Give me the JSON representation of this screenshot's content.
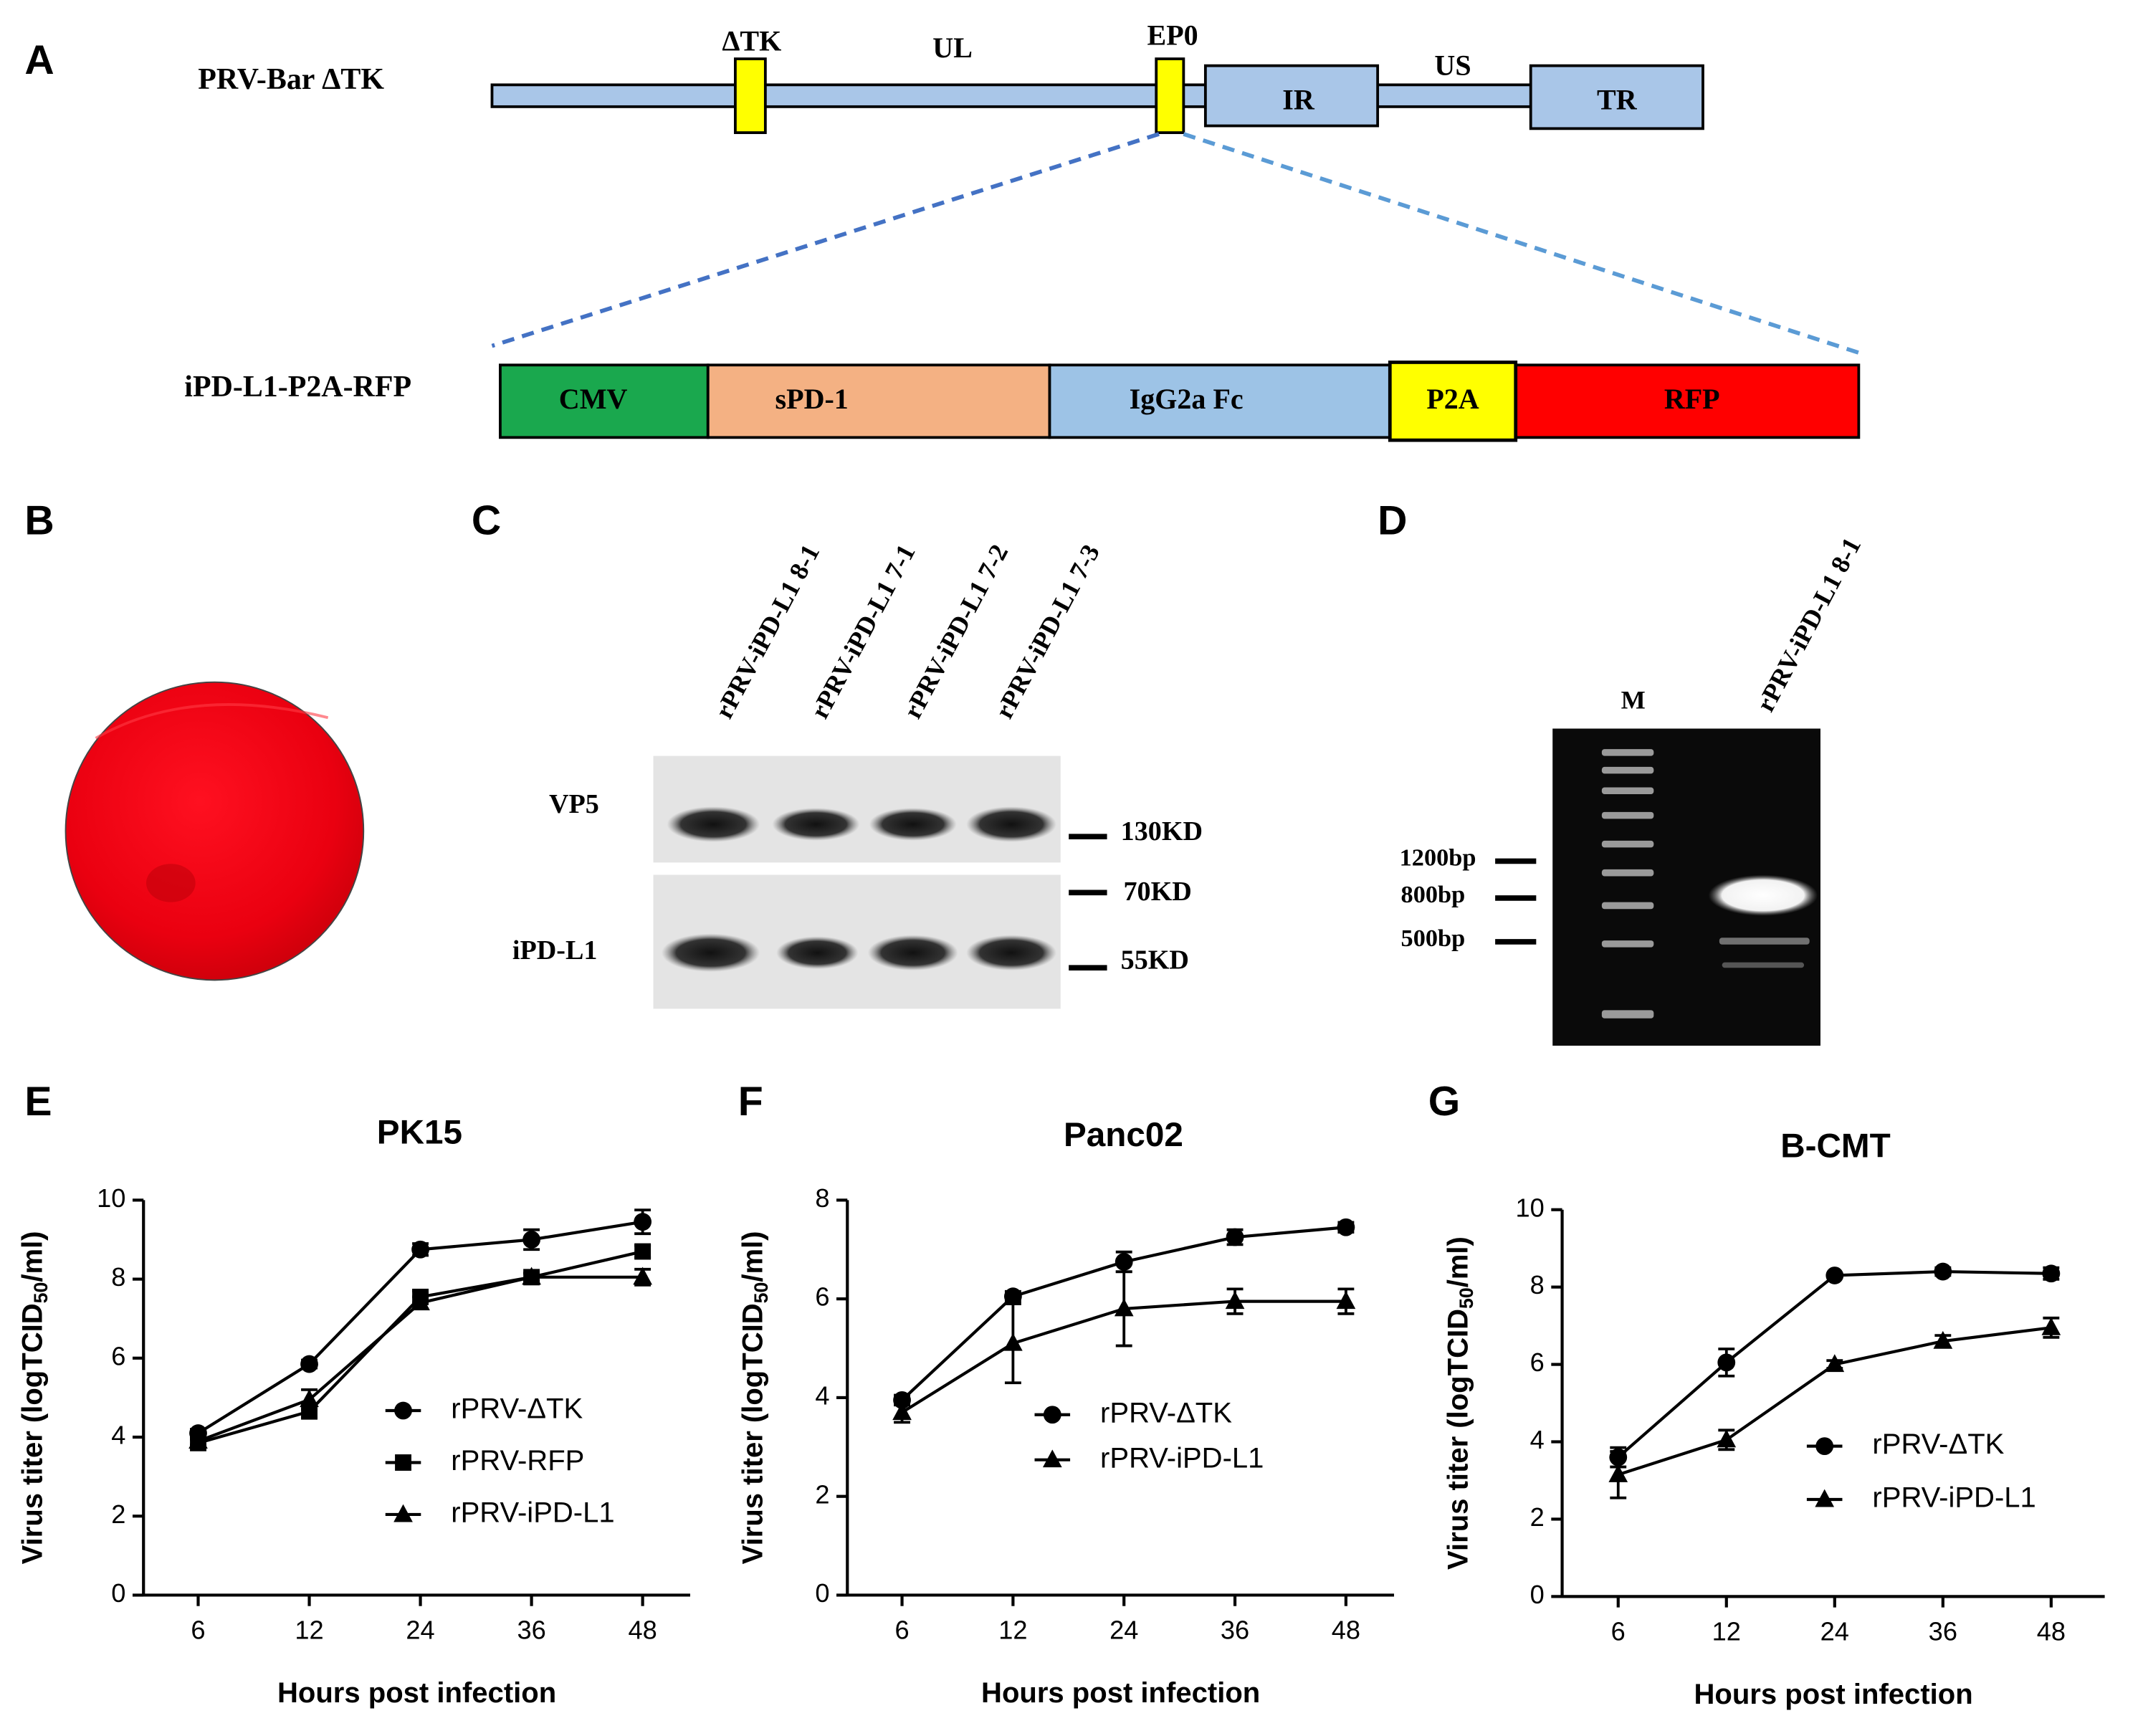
{
  "panel_a": {
    "label": "A",
    "genome_name": "PRV-Bar ΔTK",
    "genome_labels": [
      "ΔTK",
      "UL",
      "EP0",
      "IR",
      "US",
      "TR"
    ],
    "cassette_name": "iPD-L1-P2A-RFP",
    "cassette_parts": [
      "CMV",
      "sPD-1",
      "IgG2a Fc",
      "P2A",
      "RFP"
    ]
  },
  "panel_b": {
    "label": "B"
  },
  "panel_c": {
    "label": "C",
    "lanes": [
      "rPRV-iPD-L1 8-1",
      "rPRV-iPD-L1 7-1",
      "rPRV-iPD-L1 7-2",
      "rPRV-iPD-L1 7-3"
    ],
    "rows": [
      "VP5",
      "iPD-L1"
    ],
    "markers": [
      "130KD",
      "70KD",
      "55KD"
    ]
  },
  "panel_d": {
    "label": "D",
    "lanes": [
      "M",
      "rPRV-iPD-L1 8-1"
    ],
    "markers": [
      "1200bp",
      "800bp",
      "500bp"
    ]
  },
  "chart_data": [
    {
      "type": "line",
      "label": "E",
      "title": "PK15",
      "xlabel": "Hours post infection",
      "ylabel": [
        "Virus titer (logTCID",
        "50",
        "/ml)"
      ],
      "categories": [
        "6",
        "12",
        "24",
        "36",
        "48"
      ],
      "ylim": [
        0,
        10
      ],
      "yticks": [
        0,
        2,
        4,
        6,
        8,
        10
      ],
      "series": [
        {
          "name": "rPRV-ΔTK",
          "marker": "circle",
          "color": "#000000",
          "values": [
            4.1,
            5.85,
            8.75,
            9.0,
            9.45
          ],
          "errors": [
            0.1,
            0.1,
            0.15,
            0.25,
            0.3
          ]
        },
        {
          "name": "rPRV-RFP",
          "marker": "square",
          "color": "#000000",
          "values": [
            3.85,
            4.65,
            7.55,
            8.05,
            8.7
          ],
          "errors": [
            0.1,
            0.15,
            0.15,
            0.1,
            0.15
          ]
        },
        {
          "name": "rPRV-iPD-L1",
          "marker": "triangle",
          "color": "#000000",
          "values": [
            3.9,
            4.95,
            7.4,
            8.05,
            8.05
          ],
          "errors": [
            0.1,
            0.25,
            0.15,
            0.1,
            0.2
          ]
        }
      ]
    },
    {
      "type": "line",
      "label": "F",
      "title": "Panc02",
      "xlabel": "Hours post infection",
      "ylabel": [
        "Virus titer (logTCID",
        "50",
        "/ml)"
      ],
      "categories": [
        "6",
        "12",
        "24",
        "36",
        "48"
      ],
      "ylim": [
        0,
        8
      ],
      "yticks": [
        0,
        2,
        4,
        6,
        8
      ],
      "series": [
        {
          "name": "rPRV-ΔTK",
          "marker": "circle",
          "color": "#000000",
          "values": [
            3.95,
            6.05,
            6.75,
            7.25,
            7.45
          ],
          "errors": [
            0.1,
            0.1,
            0.2,
            0.15,
            0.1
          ]
        },
        {
          "name": "rPRV-iPD-L1",
          "marker": "triangle",
          "color": "#000000",
          "values": [
            3.7,
            5.1,
            5.8,
            5.95,
            5.95
          ],
          "errors": [
            0.2,
            0.8,
            0.75,
            0.25,
            0.25
          ]
        }
      ]
    },
    {
      "type": "line",
      "label": "G",
      "title": "B-CMT",
      "xlabel": "Hours post infection",
      "ylabel": [
        "Virus titer (logTCID",
        "50",
        "/ml)"
      ],
      "categories": [
        "6",
        "12",
        "24",
        "36",
        "48"
      ],
      "ylim": [
        0,
        10
      ],
      "yticks": [
        0,
        2,
        4,
        6,
        8,
        10
      ],
      "series": [
        {
          "name": "rPRV-ΔTK",
          "marker": "circle",
          "color": "#000000",
          "values": [
            3.6,
            6.05,
            8.3,
            8.4,
            8.35
          ],
          "errors": [
            0.25,
            0.35,
            0.05,
            0.1,
            0.15
          ]
        },
        {
          "name": "rPRV-iPD-L1",
          "marker": "triangle",
          "color": "#000000",
          "values": [
            3.15,
            4.05,
            6.0,
            6.6,
            6.95
          ],
          "errors": [
            0.6,
            0.25,
            0.1,
            0.15,
            0.25
          ]
        }
      ]
    }
  ]
}
